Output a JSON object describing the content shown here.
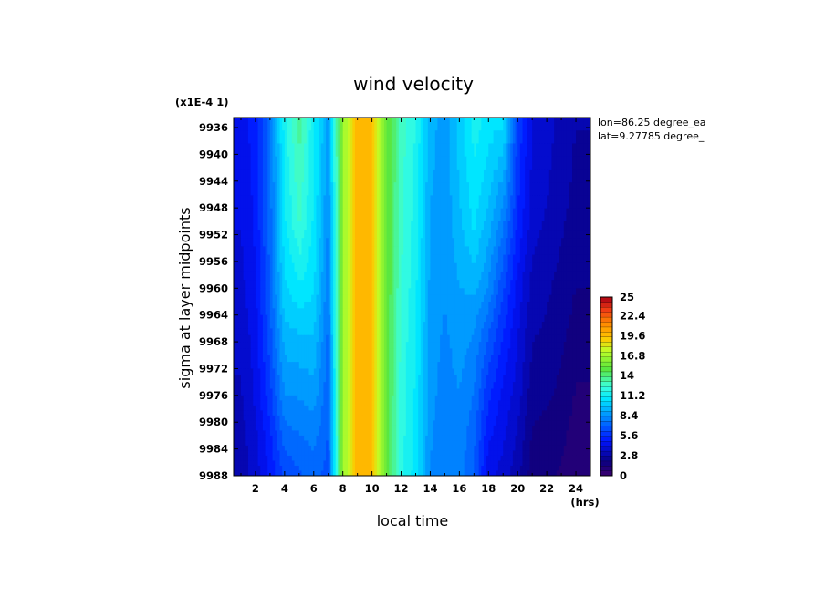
{
  "chart_data": {
    "type": "heatmap",
    "title": "wind velocity",
    "xlabel": "local time",
    "ylabel": "sigma at layer midpoints",
    "y_scale_label": "(x1E-4 1)",
    "x_unit_label": "(hrs)",
    "annotations": [
      "lon=86.25 degree_ea",
      "lat=9.27785 degree_"
    ],
    "x_ticks": [
      "2",
      "4",
      "6",
      "8",
      "10",
      "12",
      "14",
      "16",
      "18",
      "20",
      "22",
      "24"
    ],
    "y_ticks": [
      "9936",
      "9940",
      "9944",
      "9948",
      "9952",
      "9956",
      "9960",
      "9964",
      "9968",
      "9972",
      "9976",
      "9980",
      "9984",
      "9988"
    ],
    "xlim": [
      0.5,
      25
    ],
    "ylim": [
      9988,
      9934.5
    ],
    "x": [
      1,
      2,
      3,
      4,
      5,
      6,
      7,
      8,
      9,
      10,
      11,
      12,
      13,
      14,
      15,
      16,
      17,
      18,
      19,
      20,
      21,
      22,
      23,
      24
    ],
    "y": [
      9934.5,
      9950,
      9960,
      9968,
      9976,
      9982,
      9988
    ],
    "z": [
      [
        4.5,
        5.2,
        7.5,
        11.5,
        13.6,
        11.3,
        8.8,
        16.5,
        19.8,
        19.5,
        15.5,
        12.8,
        11.8,
        9.3,
        8.7,
        10.0,
        11.5,
        10.8,
        10.6,
        6.2,
        4.2,
        3.8,
        3.2,
        2.8
      ],
      [
        4.2,
        5.0,
        7.3,
        11.0,
        12.6,
        11.0,
        8.2,
        16.5,
        19.8,
        19.5,
        15.5,
        12.7,
        11.5,
        9.0,
        8.5,
        9.6,
        10.6,
        9.5,
        7.8,
        5.5,
        3.8,
        3.4,
        2.9,
        2.5
      ],
      [
        3.9,
        4.8,
        7.0,
        10.3,
        11.0,
        10.5,
        7.8,
        16.5,
        19.8,
        19.5,
        15.3,
        12.5,
        11.3,
        8.8,
        8.4,
        9.0,
        9.2,
        8.2,
        6.4,
        4.6,
        3.2,
        2.9,
        2.5,
        2.1
      ],
      [
        3.6,
        4.5,
        6.6,
        9.3,
        9.5,
        9.6,
        7.4,
        16.5,
        19.8,
        19.5,
        15.2,
        12.3,
        11.1,
        8.6,
        8.2,
        8.6,
        8.2,
        6.8,
        5.4,
        4.2,
        2.8,
        2.6,
        2.2,
        1.7
      ],
      [
        3.4,
        4.3,
        6.0,
        8.3,
        8.4,
        8.7,
        7.1,
        16.5,
        19.8,
        19.5,
        15.1,
        12.2,
        11.0,
        8.5,
        8.1,
        8.3,
        7.6,
        5.7,
        4.7,
        3.8,
        2.4,
        2.2,
        1.9,
        1.3
      ],
      [
        3.2,
        4.0,
        5.4,
        7.3,
        7.6,
        7.9,
        6.9,
        16.5,
        19.8,
        19.5,
        15.0,
        12.1,
        10.9,
        8.4,
        8.0,
        8.1,
        7.2,
        5.0,
        4.3,
        3.4,
        2.0,
        1.8,
        1.6,
        1.0
      ],
      [
        3.0,
        3.8,
        5.0,
        6.4,
        6.8,
        7.2,
        6.7,
        16.5,
        19.8,
        19.5,
        15.0,
        12.0,
        10.8,
        8.3,
        7.9,
        7.9,
        6.9,
        4.4,
        3.9,
        3.0,
        1.7,
        1.5,
        1.3,
        0.8
      ]
    ],
    "colorbar": {
      "min": 0,
      "max": 25,
      "labels": [
        "25",
        "22.4",
        "19.6",
        "16.8",
        "14",
        "11.2",
        "8.4",
        "5.6",
        "2.8",
        "0"
      ],
      "label_values": [
        25,
        22.4,
        19.6,
        16.8,
        14,
        11.2,
        8.4,
        5.6,
        2.8,
        0
      ],
      "levels": 36
    },
    "grid": false
  }
}
